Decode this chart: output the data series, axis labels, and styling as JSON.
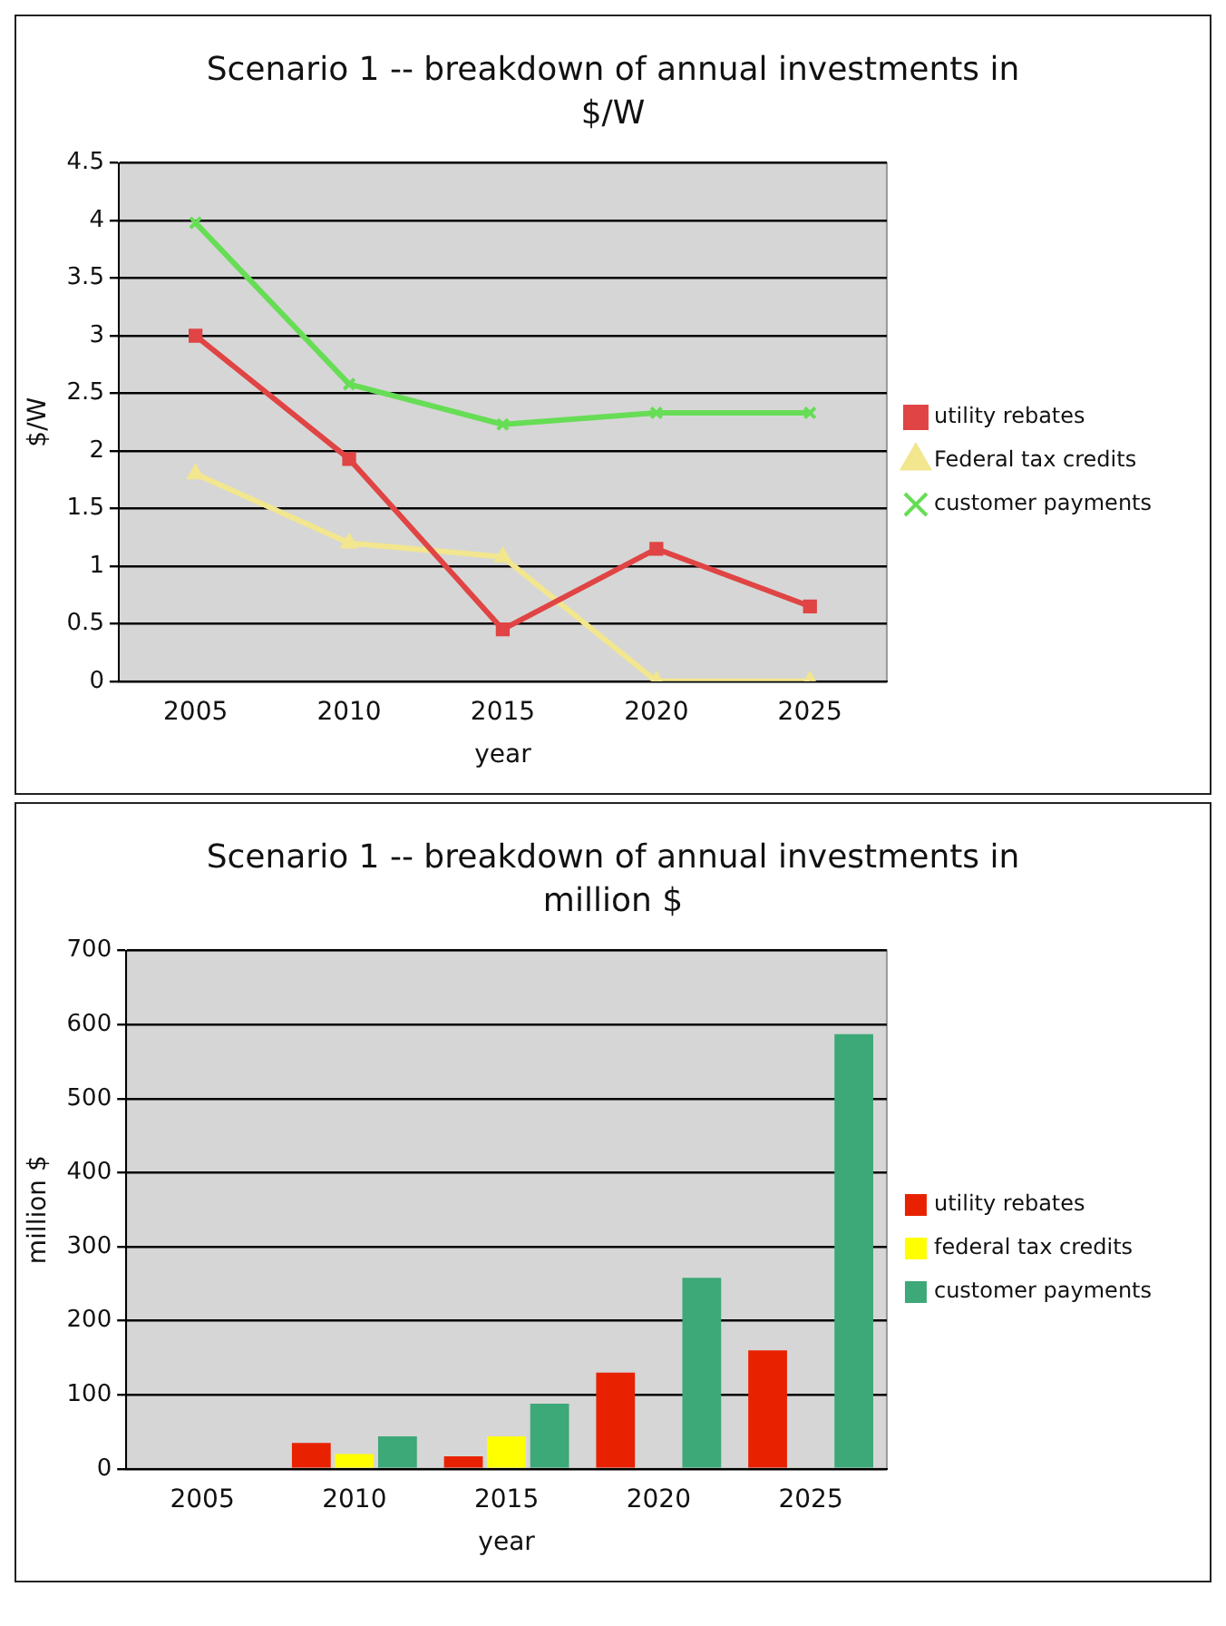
{
  "chart_data": [
    {
      "type": "line",
      "title": "Scenario 1 -- breakdown of annual investments in $/W",
      "xlabel": "year",
      "ylabel": "$/W",
      "categories": [
        "2005",
        "2010",
        "2015",
        "2020",
        "2025"
      ],
      "series": [
        {
          "name": "utility rebates",
          "color": "#e04444",
          "marker": "square",
          "values": [
            3.0,
            1.93,
            0.45,
            1.15,
            0.65
          ]
        },
        {
          "name": "Federal tax credits",
          "color": "#f2e68e",
          "marker": "triangle",
          "values": [
            1.8,
            1.2,
            1.08,
            0,
            0
          ]
        },
        {
          "name": "customer payments",
          "color": "#66dd55",
          "marker": "cross",
          "values": [
            3.98,
            2.58,
            2.23,
            2.33,
            2.33
          ]
        }
      ],
      "ylim": [
        0,
        4.5
      ],
      "yticks": [
        0,
        0.5,
        1,
        1.5,
        2,
        2.5,
        3,
        3.5,
        4,
        4.5
      ],
      "grid": "y",
      "legend": "right"
    },
    {
      "type": "bar",
      "title": "Scenario 1 -- breakdown of annual investments in million $",
      "xlabel": "year",
      "ylabel": "million $",
      "categories": [
        "2005",
        "2010",
        "2015",
        "2020",
        "2025"
      ],
      "series": [
        {
          "name": "utility rebates",
          "color": "#e82200",
          "values": [
            0,
            35,
            17,
            130,
            160
          ]
        },
        {
          "name": "federal tax credits",
          "color": "#ffff00",
          "values": [
            0,
            20,
            44,
            0,
            0
          ]
        },
        {
          "name": "customer payments",
          "color": "#3da878",
          "values": [
            0,
            44,
            88,
            258,
            587
          ]
        }
      ],
      "ylim": [
        0,
        700
      ],
      "yticks": [
        0,
        100,
        200,
        300,
        400,
        500,
        600,
        700
      ],
      "grid": "y",
      "legend": "right"
    }
  ]
}
